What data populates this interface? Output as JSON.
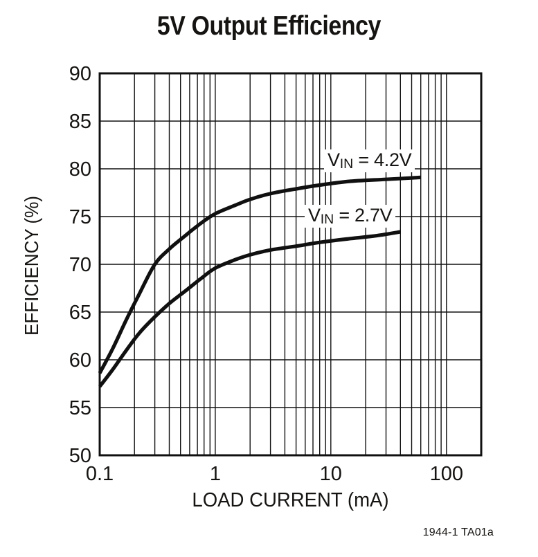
{
  "figure": {
    "title": "5V Output Efficiency",
    "footnote": "1944-1 TA01a"
  },
  "chart_data": {
    "type": "line",
    "title": "5V Output Efficiency",
    "xlabel": "LOAD CURRENT (mA)",
    "ylabel": "EFFICIENCY (%)",
    "x_scale": "log",
    "xlim": [
      0.1,
      200
    ],
    "ylim": [
      50,
      90
    ],
    "x_ticks": [
      0.1,
      1,
      10,
      100
    ],
    "y_ticks": [
      50,
      55,
      60,
      65,
      70,
      75,
      80,
      85,
      90
    ],
    "grid": "full log minor grid vertical, 5% horizontal",
    "legend_position": "inline labels on plot",
    "line_color": "#101010",
    "series": [
      {
        "name": "VIN = 4.2V",
        "points": [
          [
            0.1,
            58.6
          ],
          [
            0.13,
            61.2
          ],
          [
            0.17,
            64.2
          ],
          [
            0.22,
            66.9
          ],
          [
            0.3,
            70.0
          ],
          [
            0.4,
            71.6
          ],
          [
            0.55,
            73.0
          ],
          [
            0.75,
            74.3
          ],
          [
            1.0,
            75.3
          ],
          [
            1.5,
            76.2
          ],
          [
            2,
            76.8
          ],
          [
            3,
            77.4
          ],
          [
            5,
            77.9
          ],
          [
            8,
            78.3
          ],
          [
            15,
            78.7
          ],
          [
            30,
            78.9
          ],
          [
            60,
            79.1
          ]
        ]
      },
      {
        "name": "VIN = 2.7V",
        "points": [
          [
            0.1,
            57.2
          ],
          [
            0.13,
            59.0
          ],
          [
            0.17,
            61.0
          ],
          [
            0.22,
            62.8
          ],
          [
            0.3,
            64.5
          ],
          [
            0.4,
            65.9
          ],
          [
            0.55,
            67.2
          ],
          [
            0.75,
            68.5
          ],
          [
            1.0,
            69.6
          ],
          [
            1.5,
            70.5
          ],
          [
            2,
            71.0
          ],
          [
            3,
            71.5
          ],
          [
            5,
            71.9
          ],
          [
            8,
            72.3
          ],
          [
            15,
            72.7
          ],
          [
            25,
            73.0
          ],
          [
            40,
            73.4
          ]
        ]
      }
    ],
    "series_labels": [
      {
        "prefix": "V",
        "sub": "IN",
        "rest": " = 4.2V"
      },
      {
        "prefix": "V",
        "sub": "IN",
        "rest": " = 2.7V"
      }
    ]
  }
}
